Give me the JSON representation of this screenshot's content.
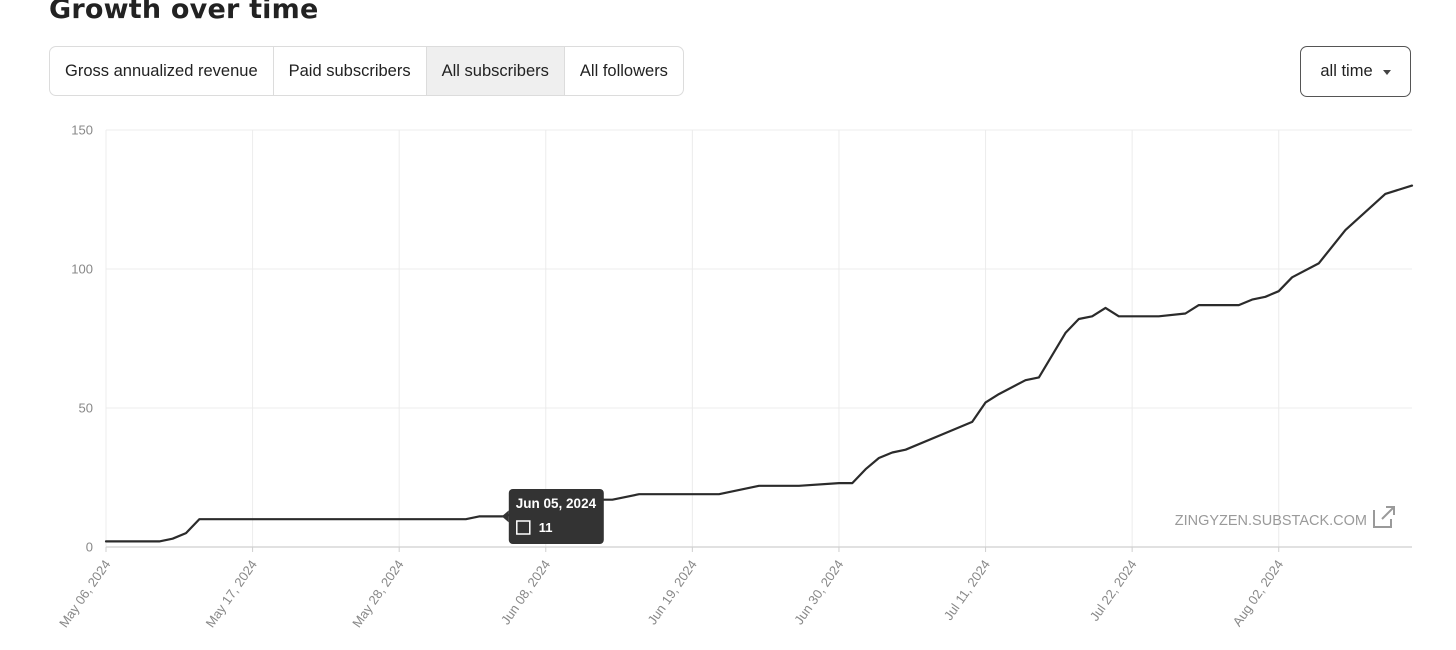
{
  "header": {
    "title": "Growth over time"
  },
  "tabs": [
    {
      "label": "Gross annualized revenue",
      "active": false
    },
    {
      "label": "Paid subscribers",
      "active": false
    },
    {
      "label": "All subscribers",
      "active": true
    },
    {
      "label": "All followers",
      "active": false
    }
  ],
  "range_select": {
    "value": "all time"
  },
  "watermark": {
    "text": "ZINGYZEN.SUBSTACK.COM",
    "icon": "external-link-icon"
  },
  "tooltip": {
    "date": "Jun 05, 2024",
    "value": "11",
    "x": "2024-06-05",
    "y": 11
  },
  "colors": {
    "line": "#2b2b2b",
    "grid": "#ececec",
    "axis": "#cfcfcf",
    "tooltip_bg": "#333333"
  },
  "chart_data": {
    "type": "line",
    "title": "",
    "xlabel": "",
    "ylabel": "",
    "x_tick_labels": [
      "May 06, 2024",
      "May 17, 2024",
      "May 28, 2024",
      "Jun 08, 2024",
      "Jun 19, 2024",
      "Jun 30, 2024",
      "Jul 11, 2024",
      "Jul 22, 2024",
      "Aug 02, 2024"
    ],
    "x_tick_dates": [
      "2024-05-06",
      "2024-05-17",
      "2024-05-28",
      "2024-06-08",
      "2024-06-19",
      "2024-06-30",
      "2024-07-11",
      "2024-07-22",
      "2024-08-02"
    ],
    "y_ticks": [
      0,
      50,
      100,
      150
    ],
    "ylim": [
      0,
      150
    ],
    "xlim": [
      "2024-05-06",
      "2024-08-12"
    ],
    "grid": true,
    "legend": "none",
    "series": [
      {
        "x": [
          "2024-05-06",
          "2024-05-10",
          "2024-05-11",
          "2024-05-12",
          "2024-05-13",
          "2024-05-14",
          "2024-05-15",
          "2024-05-20",
          "2024-05-25",
          "2024-05-30",
          "2024-06-02",
          "2024-06-03",
          "2024-06-04",
          "2024-06-05",
          "2024-06-06",
          "2024-06-09",
          "2024-06-13",
          "2024-06-15",
          "2024-06-18",
          "2024-06-21",
          "2024-06-24",
          "2024-06-27",
          "2024-06-30",
          "2024-07-01",
          "2024-07-02",
          "2024-07-03",
          "2024-07-04",
          "2024-07-05",
          "2024-07-08",
          "2024-07-10",
          "2024-07-11",
          "2024-07-12",
          "2024-07-14",
          "2024-07-15",
          "2024-07-16",
          "2024-07-17",
          "2024-07-18",
          "2024-07-19",
          "2024-07-20",
          "2024-07-21",
          "2024-07-22",
          "2024-07-24",
          "2024-07-26",
          "2024-07-27",
          "2024-07-28",
          "2024-07-30",
          "2024-07-31",
          "2024-08-01",
          "2024-08-02",
          "2024-08-03",
          "2024-08-05",
          "2024-08-06",
          "2024-08-07",
          "2024-08-10",
          "2024-08-12"
        ],
        "y": [
          2,
          2,
          3,
          5,
          10,
          10,
          10,
          10,
          10,
          10,
          10,
          11,
          11,
          11,
          13,
          17,
          17,
          19,
          19,
          19,
          22,
          22,
          23,
          23,
          28,
          32,
          34,
          35,
          41,
          45,
          52,
          55,
          60,
          61,
          69,
          77,
          82,
          83,
          86,
          83,
          83,
          83,
          84,
          87,
          87,
          87,
          89,
          90,
          92,
          97,
          102,
          108,
          114,
          127,
          130
        ]
      }
    ]
  }
}
